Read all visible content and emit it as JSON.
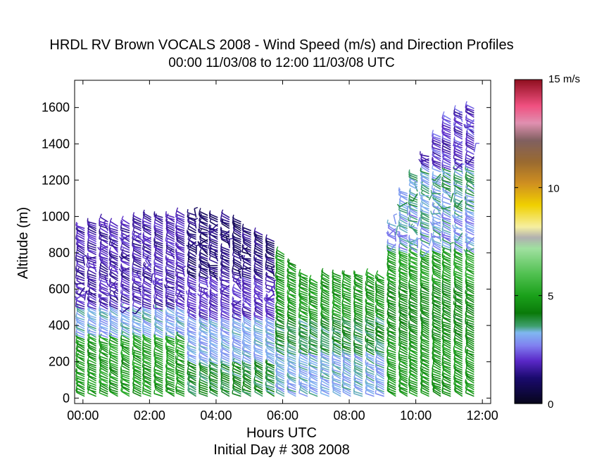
{
  "chart_data": {
    "type": "wind-barb-profile",
    "title": "HRDL RV Brown VOCALS 2008 - Wind Speed (m/s) and Direction Profiles",
    "subtitle": "00:00 11/03/08 to 12:00 11/03/08  UTC",
    "xlabel": "Hours UTC",
    "xlabel2": "Initial Day # 308  2008",
    "ylabel": "Altitude (m)",
    "xlim": [
      -0.25,
      12.25
    ],
    "ylim": [
      -30,
      1750
    ],
    "x_ticks": [
      0,
      2,
      4,
      6,
      8,
      10,
      12
    ],
    "x_tick_labels": [
      "00:00",
      "02:00",
      "04:00",
      "06:00",
      "08:00",
      "10:00",
      "12:00"
    ],
    "y_ticks": [
      0,
      200,
      400,
      600,
      800,
      1000,
      1200,
      1400,
      1600
    ],
    "y_tick_labels": [
      "0",
      "200",
      "400",
      "600",
      "800",
      "1000",
      "1200",
      "1400",
      "1600"
    ],
    "colorbar": {
      "min": 0,
      "max": 15,
      "unit_label": "15 m/s",
      "ticks": [
        0,
        5,
        10
      ],
      "tick_labels": [
        "0",
        "5",
        "10"
      ],
      "stops": [
        {
          "v": 0,
          "color": "#06061a"
        },
        {
          "v": 1.2,
          "color": "#1a0a6e"
        },
        {
          "v": 2.0,
          "color": "#5a28c8"
        },
        {
          "v": 2.7,
          "color": "#8080f0"
        },
        {
          "v": 3.3,
          "color": "#80b8f0"
        },
        {
          "v": 3.6,
          "color": "#40a070"
        },
        {
          "v": 4.2,
          "color": "#0a7a0a"
        },
        {
          "v": 5.0,
          "color": "#1aa01a"
        },
        {
          "v": 6.0,
          "color": "#50c050"
        },
        {
          "v": 7.2,
          "color": "#a0e0a0"
        },
        {
          "v": 7.7,
          "color": "#b0b0b0"
        },
        {
          "v": 8.2,
          "color": "#f6f0a0"
        },
        {
          "v": 9.2,
          "color": "#f0d000"
        },
        {
          "v": 10.2,
          "color": "#d09020"
        },
        {
          "v": 11.2,
          "color": "#9a6a30"
        },
        {
          "v": 12.2,
          "color": "#806060"
        },
        {
          "v": 13.0,
          "color": "#e090b0"
        },
        {
          "v": 13.8,
          "color": "#f05080"
        },
        {
          "v": 15,
          "color": "#901020"
        }
      ]
    },
    "profiles": [
      {
        "t": 0.05,
        "top": 940,
        "regime": "A"
      },
      {
        "t": 0.4,
        "top": 960,
        "regime": "A"
      },
      {
        "t": 0.75,
        "top": 975,
        "regime": "A"
      },
      {
        "t": 1.05,
        "top": 955,
        "regime": "A"
      },
      {
        "t": 1.4,
        "top": 960,
        "regime": "A"
      },
      {
        "t": 1.75,
        "top": 985,
        "regime": "A"
      },
      {
        "t": 2.05,
        "top": 995,
        "regime": "A"
      },
      {
        "t": 2.4,
        "top": 1000,
        "regime": "A"
      },
      {
        "t": 2.75,
        "top": 1000,
        "regime": "A"
      },
      {
        "t": 3.05,
        "top": 1010,
        "regime": "A"
      },
      {
        "t": 3.4,
        "top": 1015,
        "regime": "B"
      },
      {
        "t": 3.75,
        "top": 1010,
        "regime": "B"
      },
      {
        "t": 4.05,
        "top": 1000,
        "regime": "B"
      },
      {
        "t": 4.4,
        "top": 1000,
        "regime": "B"
      },
      {
        "t": 4.75,
        "top": 975,
        "regime": "B"
      },
      {
        "t": 5.05,
        "top": 930,
        "regime": "B"
      },
      {
        "t": 5.4,
        "top": 900,
        "regime": "B"
      },
      {
        "t": 5.75,
        "top": 870,
        "regime": "B"
      },
      {
        "t": 6.05,
        "top": 800,
        "regime": "C"
      },
      {
        "t": 6.4,
        "top": 730,
        "regime": "C"
      },
      {
        "t": 6.75,
        "top": 680,
        "regime": "C"
      },
      {
        "t": 7.05,
        "top": 640,
        "regime": "C"
      },
      {
        "t": 7.4,
        "top": 670,
        "regime": "C"
      },
      {
        "t": 7.75,
        "top": 680,
        "regime": "C"
      },
      {
        "t": 8.05,
        "top": 680,
        "regime": "C"
      },
      {
        "t": 8.4,
        "top": 680,
        "regime": "C"
      },
      {
        "t": 8.75,
        "top": 670,
        "regime": "C"
      },
      {
        "t": 9.05,
        "top": 660,
        "regime": "C"
      },
      {
        "t": 9.4,
        "top": 960,
        "regime": "D"
      },
      {
        "t": 9.75,
        "top": 1130,
        "regime": "D"
      },
      {
        "t": 10.05,
        "top": 1230,
        "regime": "D"
      },
      {
        "t": 10.4,
        "top": 1330,
        "regime": "D"
      },
      {
        "t": 10.75,
        "top": 1440,
        "regime": "D"
      },
      {
        "t": 11.05,
        "top": 1540,
        "regime": "D"
      },
      {
        "t": 11.4,
        "top": 1570,
        "regime": "D"
      },
      {
        "t": 11.75,
        "top": 1600,
        "regime": "D"
      }
    ]
  }
}
